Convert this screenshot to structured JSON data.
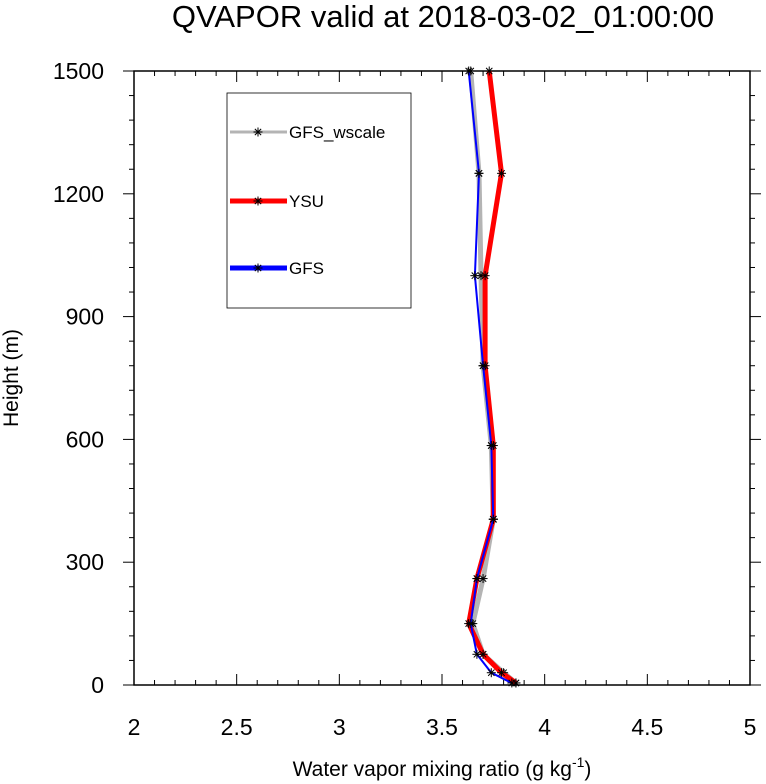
{
  "chart_data": {
    "type": "line",
    "title": "QVAPOR valid at 2018-03-02_01:00:00",
    "xlabel": "Water vapor mixing ratio (g kg",
    "xlabel_superscript": "-1",
    "xlabel_close": ")",
    "ylabel": "Height (m)",
    "xlim": [
      2,
      5
    ],
    "ylim": [
      0,
      1500
    ],
    "xticks": [
      "2",
      "2.5",
      "3",
      "3.5",
      "4",
      "4.5",
      "5"
    ],
    "yticks": [
      "0",
      "300",
      "600",
      "900",
      "1200",
      "1500"
    ],
    "grid": false,
    "legend_position": "top-left",
    "series": [
      {
        "name": "GFS_wscale",
        "color": "#b4b4b4",
        "marker": "asterisk",
        "points": [
          {
            "x": 3.86,
            "y": 5
          },
          {
            "x": 3.8,
            "y": 30
          },
          {
            "x": 3.7,
            "y": 75
          },
          {
            "x": 3.65,
            "y": 150
          },
          {
            "x": 3.7,
            "y": 260
          },
          {
            "x": 3.75,
            "y": 405
          },
          {
            "x": 3.74,
            "y": 585
          },
          {
            "x": 3.7,
            "y": 780
          },
          {
            "x": 3.69,
            "y": 1000
          },
          {
            "x": 3.68,
            "y": 1250
          },
          {
            "x": 3.64,
            "y": 1500
          }
        ]
      },
      {
        "name": "YSU",
        "color": "#ff0000",
        "marker": "asterisk",
        "points": [
          {
            "x": 3.86,
            "y": 5
          },
          {
            "x": 3.79,
            "y": 30
          },
          {
            "x": 3.7,
            "y": 75
          },
          {
            "x": 3.63,
            "y": 150
          },
          {
            "x": 3.67,
            "y": 260
          },
          {
            "x": 3.75,
            "y": 405
          },
          {
            "x": 3.75,
            "y": 585
          },
          {
            "x": 3.71,
            "y": 780
          },
          {
            "x": 3.71,
            "y": 1000
          },
          {
            "x": 3.79,
            "y": 1250
          },
          {
            "x": 3.73,
            "y": 1500
          }
        ]
      },
      {
        "name": "GFS",
        "color": "#0000ff",
        "marker": "asterisk",
        "points": [
          {
            "x": 3.84,
            "y": 5
          },
          {
            "x": 3.74,
            "y": 30
          },
          {
            "x": 3.67,
            "y": 75
          },
          {
            "x": 3.64,
            "y": 150
          },
          {
            "x": 3.67,
            "y": 260
          },
          {
            "x": 3.75,
            "y": 405
          },
          {
            "x": 3.74,
            "y": 585
          },
          {
            "x": 3.7,
            "y": 780
          },
          {
            "x": 3.66,
            "y": 1000
          },
          {
            "x": 3.68,
            "y": 1250
          },
          {
            "x": 3.63,
            "y": 1500
          }
        ]
      }
    ]
  }
}
